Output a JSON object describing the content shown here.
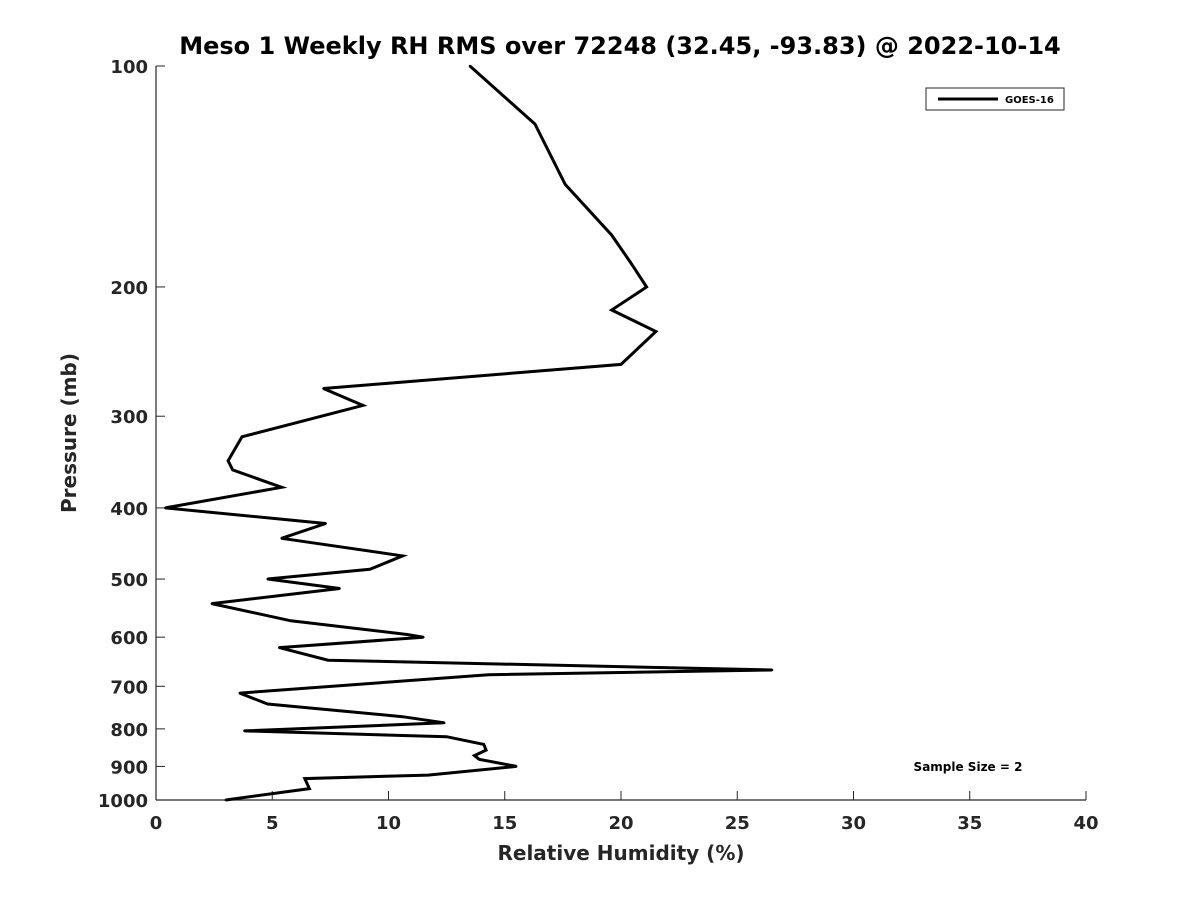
{
  "chart_data": {
    "type": "line",
    "title": "Meso 1 Weekly RH RMS over 72248 (32.45, -93.83) @ 2022-10-14",
    "xlabel": "Relative Humidity (%)",
    "ylabel": "Pressure (mb)",
    "xlim": [
      0,
      40
    ],
    "ylim": [
      100,
      1000
    ],
    "y_scale": "log",
    "y_reversed": true,
    "grid": false,
    "legend_position": "top-right",
    "x_ticks": [
      0,
      5,
      10,
      15,
      20,
      25,
      30,
      35,
      40
    ],
    "y_ticks": [
      100,
      200,
      300,
      400,
      500,
      600,
      700,
      800,
      900,
      1000
    ],
    "annotation": "Sample Size = 2",
    "series": [
      {
        "name": "GOES-16",
        "color": "#000000",
        "x": [
          13.5,
          16.3,
          17.6,
          19.6,
          20.4,
          21.1,
          19.6,
          21.5,
          20.0,
          7.2,
          8.9,
          3.7,
          3.1,
          3.3,
          5.4,
          0.4,
          7.3,
          5.4,
          10.6,
          9.2,
          4.8,
          7.9,
          2.4,
          5.8,
          10.8,
          11.5,
          5.3,
          7.4,
          26.5,
          14.3,
          3.6,
          4.8,
          10.6,
          12.4,
          3.8,
          12.5,
          14.1,
          14.2,
          13.7,
          13.9,
          15.5,
          11.7,
          6.4,
          6.6,
          3.0
        ],
        "y": [
          100,
          120,
          145,
          170,
          185,
          200,
          215,
          230,
          255,
          275,
          290,
          320,
          345,
          355,
          375,
          400,
          420,
          440,
          465,
          485,
          500,
          515,
          540,
          570,
          595,
          600,
          620,
          645,
          665,
          675,
          715,
          740,
          770,
          785,
          805,
          820,
          840,
          855,
          870,
          880,
          900,
          925,
          935,
          965,
          1000
        ]
      }
    ]
  }
}
